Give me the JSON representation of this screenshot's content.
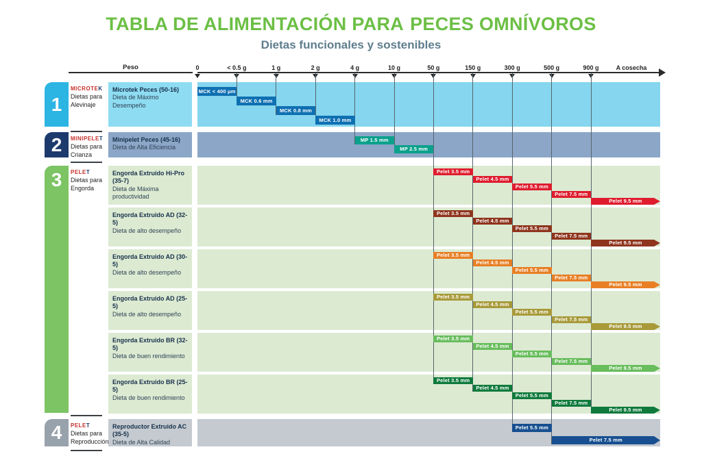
{
  "title": {
    "prefix": "TABLA DE ALIMENTACIÓN PARA",
    "emphasis": "PECES OMNÍVOROS"
  },
  "subtitle": "Dietas funcionales y sostenibles",
  "colors": {
    "title_green": "#6cbf45",
    "subtitle_gray": "#5e7d8d",
    "gridline": "#57656d",
    "brand_red": "#c62f28",
    "brand_dark": "#1d3a6d"
  },
  "chart_data": {
    "type": "gantt",
    "title": "TABLA DE ALIMENTACIÓN PARA PECES OMNÍVOROS",
    "subtitle": "Dietas funcionales y sostenibles",
    "x_axis": {
      "label": "Peso",
      "ticks": [
        "0",
        "< 0.5 g",
        "1 g",
        "2 g",
        "4 g",
        "10 g",
        "50 g",
        "150 g",
        "300 g",
        "500 g",
        "900 g"
      ],
      "end_label": "A cosecha"
    },
    "groups": [
      {
        "number": "1",
        "brand": "MICROTEK",
        "category_line1": "Dietas para",
        "category_line2": "Alevinaje",
        "number_color": "#2cb4e3",
        "band_color": "#85d6ee",
        "box_color": "#8edcf2",
        "products": [
          {
            "name": "Microtek Peces (50-16)",
            "desc": "Dieta de Máximo Desempeño",
            "bar_color": "#0f70b2",
            "bars": [
              {
                "label": "MCK < 400 μm",
                "from": "0",
                "to": "< 0.5 g"
              },
              {
                "label": "MCK 0.6 mm",
                "from": "< 0.5 g",
                "to": "1 g"
              },
              {
                "label": "MCK 0.8 mm",
                "from": "1 g",
                "to": "2 g"
              },
              {
                "label": "MCK 1.0 mm",
                "from": "2 g",
                "to": "4 g"
              }
            ]
          }
        ]
      },
      {
        "number": "2",
        "brand": "MINIPELET",
        "category_line1": "Dietas para",
        "category_line2": "Crianza",
        "number_color": "#1d3a6d",
        "band_color": "#8ca6c8",
        "box_color": "#8ca6c8",
        "products": [
          {
            "name": "Minipelet Peces (45-16)",
            "desc": "Dieta de Alta Eficiencia",
            "bar_color": "#0ba18c",
            "bars": [
              {
                "label": "MP 1.5 mm",
                "from": "4 g",
                "to": "10 g"
              },
              {
                "label": "MP 2.5 mm",
                "from": "10 g",
                "to": "50 g"
              }
            ]
          }
        ]
      },
      {
        "number": "3",
        "brand": "PELET",
        "category_line1": "Dietas para",
        "category_line2": "Engorda",
        "number_color": "#7cc464",
        "band_color": "#dcead2",
        "box_color": "#dcead2",
        "products": [
          {
            "name": "Engorda Extruido Hi-Pro (35-7)",
            "desc": "Dieta de Máxima productividad",
            "bar_color": "#df1c2e",
            "bars": [
              {
                "label": "Pelet 3.5 mm",
                "from": "50 g",
                "to": "150 g"
              },
              {
                "label": "Pelet 4.5 mm",
                "from": "150 g",
                "to": "300 g"
              },
              {
                "label": "Pelet 5.5 mm",
                "from": "300 g",
                "to": "500 g"
              },
              {
                "label": "Pelet 7.5 mm",
                "from": "500 g",
                "to": "900 g"
              },
              {
                "label": "Pelet 9.5 mm",
                "from": "900 g",
                "to": "A cosecha",
                "arrow": true
              }
            ]
          },
          {
            "name": "Engorda Extruido AD (32-5)",
            "desc": "Dieta de alto desempeño",
            "bar_color": "#8f351d",
            "bars": [
              {
                "label": "Pelet 3.5 mm",
                "from": "50 g",
                "to": "150 g"
              },
              {
                "label": "Pelet 4.5 mm",
                "from": "150 g",
                "to": "300 g"
              },
              {
                "label": "Pelet 5.5 mm",
                "from": "300 g",
                "to": "500 g"
              },
              {
                "label": "Pelet 7.5 mm",
                "from": "500 g",
                "to": "900 g"
              },
              {
                "label": "Pelet 9.5 mm",
                "from": "900 g",
                "to": "A cosecha",
                "arrow": true
              }
            ]
          },
          {
            "name": "Engorda Extruido AD (30-5)",
            "desc": "Dieta de alto desempeño",
            "bar_color": "#e87f25",
            "bars": [
              {
                "label": "Pelet 3.5 mm",
                "from": "50 g",
                "to": "150 g"
              },
              {
                "label": "Pelet 4.5 mm",
                "from": "150 g",
                "to": "300 g"
              },
              {
                "label": "Pelet 5.5 mm",
                "from": "300 g",
                "to": "500 g"
              },
              {
                "label": "Pelet 7.5 mm",
                "from": "500 g",
                "to": "900 g"
              },
              {
                "label": "Pelet 9.5 mm",
                "from": "900 g",
                "to": "A cosecha",
                "arrow": true
              }
            ]
          },
          {
            "name": "Engorda Extruido AD (25-5)",
            "desc": "Dieta de alto desempeño",
            "bar_color": "#a89a39",
            "bars": [
              {
                "label": "Pelet 3.5 mm",
                "from": "50 g",
                "to": "150 g"
              },
              {
                "label": "Pelet 4.5 mm",
                "from": "150 g",
                "to": "300 g"
              },
              {
                "label": "Pelet 5.5 mm",
                "from": "300 g",
                "to": "500 g"
              },
              {
                "label": "Pelet 7.5 mm",
                "from": "500 g",
                "to": "900 g"
              },
              {
                "label": "Pelet 9.5 mm",
                "from": "900 g",
                "to": "A cosecha",
                "arrow": true
              }
            ]
          },
          {
            "name": "Engorda Extruido BR (32-5)",
            "desc": "Dieta de buen rendimiento",
            "bar_color": "#68bd5c",
            "bars": [
              {
                "label": "Pelet 3.5 mm",
                "from": "50 g",
                "to": "150 g"
              },
              {
                "label": "Pelet 4.5 mm",
                "from": "150 g",
                "to": "300 g"
              },
              {
                "label": "Pelet 5.5 mm",
                "from": "300 g",
                "to": "500 g"
              },
              {
                "label": "Pelet 7.5 mm",
                "from": "500 g",
                "to": "900 g"
              },
              {
                "label": "Pelet 9.5 mm",
                "from": "900 g",
                "to": "A cosecha",
                "arrow": true
              }
            ]
          },
          {
            "name": "Engorda Extruido BR (25-5)",
            "desc": "Dieta de buen rendimiento",
            "bar_color": "#0f7a3c",
            "bars": [
              {
                "label": "Pelet 3.5 mm",
                "from": "50 g",
                "to": "150 g"
              },
              {
                "label": "Pelet 4.5 mm",
                "from": "150 g",
                "to": "300 g"
              },
              {
                "label": "Pelet 5.5 mm",
                "from": "300 g",
                "to": "500 g"
              },
              {
                "label": "Pelet 7.5 mm",
                "from": "500 g",
                "to": "900 g"
              },
              {
                "label": "Pelet 9.5 mm",
                "from": "900 g",
                "to": "A cosecha",
                "arrow": true
              }
            ]
          }
        ]
      },
      {
        "number": "4",
        "brand": "PELET",
        "category_line1": "Dietas para",
        "category_line2": "Reproducción",
        "number_color": "#98a2ac",
        "band_color": "#c4cad0",
        "box_color": "#c4cad0",
        "products": [
          {
            "name": "Reproductor Extruido AC (35-5)",
            "desc": "Dieta de Alta Calidad",
            "bar_color": "#174f90",
            "bars": [
              {
                "label": "Pelet 5.5 mm",
                "from": "300 g",
                "to": "500 g"
              },
              {
                "label": "Pelet 7.5 mm",
                "from": "500 g",
                "to": "A cosecha",
                "arrow": true
              }
            ]
          }
        ]
      }
    ]
  }
}
